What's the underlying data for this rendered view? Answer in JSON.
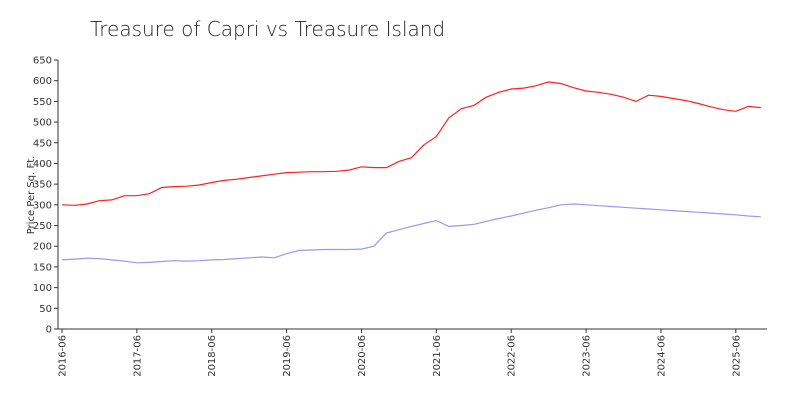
{
  "chart_data": {
    "type": "line",
    "title": "Treasure of Capri vs Treasure Island",
    "y_label": "Price Per Sq. Ft.",
    "x": [
      "2016-06",
      "2016-08",
      "2016-10",
      "2016-12",
      "2017-02",
      "2017-04",
      "2017-06",
      "2017-08",
      "2017-10",
      "2017-12",
      "2018-02",
      "2018-04",
      "2018-06",
      "2018-08",
      "2018-10",
      "2018-12",
      "2019-02",
      "2019-04",
      "2019-06",
      "2019-08",
      "2019-10",
      "2019-12",
      "2020-02",
      "2020-04",
      "2020-06",
      "2020-08",
      "2020-10",
      "2020-12",
      "2021-02",
      "2021-04",
      "2021-06",
      "2021-08",
      "2021-10",
      "2021-12",
      "2022-02",
      "2022-04",
      "2022-06",
      "2022-08",
      "2022-10",
      "2022-12",
      "2023-02",
      "2023-04",
      "2023-06",
      "2023-08",
      "2023-10",
      "2023-12",
      "2024-02",
      "2024-04",
      "2024-06",
      "2024-08",
      "2024-10",
      "2024-12",
      "2025-02",
      "2025-04",
      "2025-06",
      "2025-08",
      "2025-10"
    ],
    "series": [
      {
        "color": "#ff2020",
        "values": [
          300,
          299,
          302,
          310,
          312,
          322,
          322,
          327,
          342,
          344,
          345,
          348,
          354,
          359,
          362,
          366,
          370,
          374,
          378,
          379,
          380,
          380,
          381,
          384,
          392,
          390,
          390,
          405,
          414,
          445,
          465,
          510,
          532,
          540,
          560,
          572,
          580,
          582,
          588,
          597,
          593,
          583,
          575,
          572,
          567,
          560,
          550,
          565,
          562,
          557,
          552,
          545,
          537,
          530,
          526,
          538,
          535
        ]
      },
      {
        "color": "#9999ee",
        "values": [
          167,
          169,
          171,
          170,
          167,
          164,
          160,
          161,
          163,
          165,
          164,
          165,
          167,
          168,
          170,
          172,
          174,
          172,
          182,
          190,
          191,
          192,
          192,
          192,
          193,
          200,
          232,
          240,
          248,
          255,
          262,
          248,
          250,
          253,
          260,
          267,
          273,
          280,
          287,
          293,
          300,
          302,
          300,
          298,
          296,
          294,
          292,
          290,
          288,
          286,
          284,
          282,
          280,
          278,
          276,
          273,
          271
        ]
      }
    ],
    "xlim": [
      "2016-06",
      "2025-11"
    ],
    "xticks": [
      "2016-06",
      "2017-06",
      "2018-06",
      "2019-06",
      "2020-06",
      "2021-06",
      "2022-06",
      "2023-06",
      "2024-06",
      "2025-06"
    ],
    "ylim": [
      0,
      650
    ],
    "yticks": [
      0,
      50,
      100,
      150,
      200,
      250,
      300,
      350,
      400,
      450,
      500,
      550,
      600,
      650
    ],
    "grid": false
  }
}
